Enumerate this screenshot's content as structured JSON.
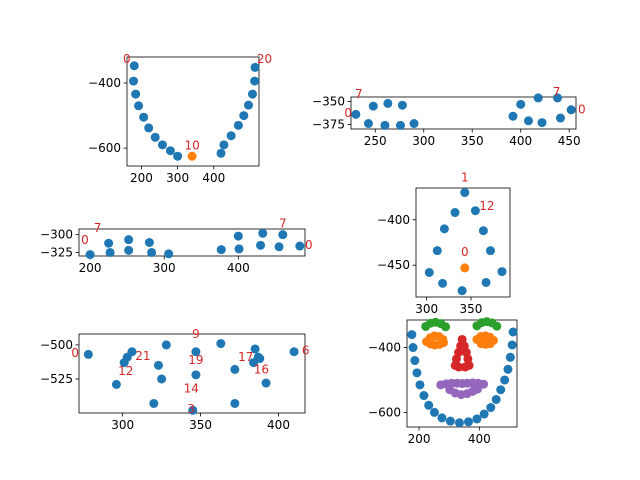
{
  "chart_data": [
    {
      "type": "scatter",
      "title": "",
      "xlabel": "",
      "ylabel": "",
      "xlim": [
        160,
        525
      ],
      "ylim": [
        -655,
        -320
      ],
      "xticks": [
        200,
        300,
        400
      ],
      "yticks": [
        -400,
        -600
      ],
      "grid": false,
      "series": [
        {
          "color": "#1f77b4",
          "points": [
            [
              180,
              -347
            ],
            [
              178,
              -394
            ],
            [
              184,
              -434
            ],
            [
              192,
              -470
            ],
            [
              206,
              -505
            ],
            [
              220,
              -538
            ],
            [
              238,
              -567
            ],
            [
              258,
              -590
            ],
            [
              280,
              -608
            ],
            [
              300,
              -625
            ],
            [
              420,
              -616
            ],
            [
              428,
              -590
            ],
            [
              448,
              -562
            ],
            [
              468,
              -530
            ],
            [
              483,
              -500
            ],
            [
              496,
              -468
            ],
            [
              507,
              -434
            ],
            [
              513,
              -394
            ],
            [
              514,
              -352
            ]
          ]
        },
        {
          "color": "#ff7f0e",
          "points": [
            [
              340,
              -625
            ]
          ]
        }
      ],
      "annotations": [
        {
          "text": "0",
          "x": 170,
          "y": -338,
          "color": "#d62728",
          "align": "end"
        },
        {
          "text": "20",
          "x": 519,
          "y": -338,
          "color": "#d62728",
          "align": "start"
        },
        {
          "text": "10",
          "x": 340,
          "y": -605,
          "color": "#d62728",
          "align": "middle"
        }
      ]
    },
    {
      "type": "scatter",
      "title": "",
      "xlabel": "",
      "ylabel": "",
      "xlim": [
        225,
        457
      ],
      "ylim": [
        -380,
        -345
      ],
      "xticks": [
        250,
        300,
        350,
        400,
        450
      ],
      "yticks": [
        -350,
        -375
      ],
      "grid": false,
      "series": [
        {
          "color": "#1f77b4",
          "points": [
            [
              230,
              -364
            ],
            [
              243,
              -374
            ],
            [
              248,
              -355
            ],
            [
              260,
              -376
            ],
            [
              263,
              -352
            ],
            [
              276,
              -376
            ],
            [
              278,
              -354
            ],
            [
              290,
              -374
            ],
            [
              392,
              -366
            ],
            [
              400,
              -353
            ],
            [
              408,
              -371
            ],
            [
              418,
              -346
            ],
            [
              422,
              -373
            ],
            [
              438,
              -346
            ],
            [
              441,
              -368
            ],
            [
              452,
              -359
            ]
          ]
        }
      ],
      "annotations": [
        {
          "text": "7",
          "x": 237,
          "y": -346,
          "color": "#d62728",
          "align": "end"
        },
        {
          "text": "7",
          "x": 437,
          "y": -344,
          "color": "#d62728",
          "align": "middle"
        },
        {
          "text": "0",
          "x": 226,
          "y": -367,
          "color": "#d62728",
          "align": "end",
          "big": true
        },
        {
          "text": "0",
          "x": 459,
          "y": -363,
          "color": "#d62728",
          "align": "start"
        }
      ]
    },
    {
      "type": "scatter",
      "title": "",
      "xlabel": "",
      "ylabel": "",
      "xlim": [
        185,
        490
      ],
      "ylim": [
        -330,
        -292
      ],
      "xticks": [
        200,
        300,
        400
      ],
      "yticks": [
        -300,
        -325
      ],
      "grid": false,
      "series": [
        {
          "color": "#1f77b4",
          "points": [
            [
              200,
              -328
            ],
            [
              225,
              -312
            ],
            [
              227,
              -325
            ],
            [
              252,
              -322
            ],
            [
              252,
              -307
            ],
            [
              280,
              -311
            ],
            [
              283,
              -325
            ],
            [
              306,
              -327
            ],
            [
              377,
              -321
            ],
            [
              400,
              -302
            ],
            [
              401,
              -320
            ],
            [
              430,
              -315
            ],
            [
              433,
              -298
            ],
            [
              455,
              -317
            ],
            [
              460,
              -300
            ],
            [
              483,
              -316
            ]
          ]
        }
      ],
      "annotations": [
        {
          "text": "7",
          "x": 210,
          "y": -296,
          "color": "#d62728",
          "align": "middle"
        },
        {
          "text": "7",
          "x": 460,
          "y": -290,
          "color": "#d62728",
          "align": "middle"
        },
        {
          "text": "0",
          "x": 193,
          "y": -313,
          "color": "#d62728",
          "align": "middle"
        },
        {
          "text": "0",
          "x": 490,
          "y": -320,
          "color": "#d62728",
          "align": "start"
        }
      ]
    },
    {
      "type": "scatter",
      "title": "",
      "xlabel": "",
      "ylabel": "",
      "xlim": [
        288,
        394
      ],
      "ylim": [
        -485,
        -365
      ],
      "xticks": [
        300,
        350
      ],
      "yticks": [
        -400,
        -450
      ],
      "grid": false,
      "series": [
        {
          "color": "#1f77b4",
          "points": [
            [
              343,
              -370
            ],
            [
              332,
              -392
            ],
            [
              355,
              -390
            ],
            [
              320,
              -410
            ],
            [
              364,
              -412
            ],
            [
              312,
              -434
            ],
            [
              372,
              -434
            ],
            [
              303,
              -458
            ],
            [
              385,
              -457
            ],
            [
              318,
              -470
            ],
            [
              340,
              -478
            ],
            [
              367,
              -469
            ]
          ]
        },
        {
          "color": "#ff7f0e",
          "points": [
            [
              343,
              -453
            ]
          ]
        }
      ],
      "annotations": [
        {
          "text": "1",
          "x": 343,
          "y": -358,
          "color": "#d62728",
          "align": "middle"
        },
        {
          "text": "12",
          "x": 368,
          "y": -389,
          "color": "#d62728",
          "align": "middle"
        },
        {
          "text": "0",
          "x": 343,
          "y": -440,
          "color": "#d62728",
          "align": "middle"
        }
      ]
    },
    {
      "type": "scatter",
      "title": "",
      "xlabel": "",
      "ylabel": "",
      "xlim": [
        272,
        417
      ],
      "ylim": [
        -550,
        -492
      ],
      "xticks": [
        300,
        350,
        400
      ],
      "yticks": [
        -500,
        -525
      ],
      "grid": false,
      "series": [
        {
          "color": "#1f77b4",
          "points": [
            [
              278,
              -507
            ],
            [
              296,
              -529
            ],
            [
              301,
              -513
            ],
            [
              303,
              -509
            ],
            [
              306,
              -505
            ],
            [
              320,
              -543
            ],
            [
              323,
              -515
            ],
            [
              325,
              -525
            ],
            [
              328,
              -500
            ],
            [
              345,
              -548
            ],
            [
              347,
              -522
            ],
            [
              347,
              -505
            ],
            [
              363,
              -499
            ],
            [
              372,
              -543
            ],
            [
              372,
              -518
            ],
            [
              384,
              -513
            ],
            [
              385,
              -503
            ],
            [
              387,
              -509
            ],
            [
              388,
              -510
            ],
            [
              392,
              -528
            ],
            [
              410,
              -505
            ]
          ]
        }
      ],
      "annotations": [
        {
          "text": "0",
          "x": 272,
          "y": -509,
          "color": "#d62728",
          "align": "end"
        },
        {
          "text": "21",
          "x": 313,
          "y": -511,
          "color": "#d62728",
          "align": "middle"
        },
        {
          "text": "12",
          "x": 302,
          "y": -522,
          "color": "#d62728",
          "align": "middle"
        },
        {
          "text": "9",
          "x": 347,
          "y": -495,
          "color": "#d62728",
          "align": "middle"
        },
        {
          "text": "19",
          "x": 347,
          "y": -514,
          "color": "#d62728",
          "align": "middle"
        },
        {
          "text": "14",
          "x": 344,
          "y": -535,
          "color": "#d62728",
          "align": "middle"
        },
        {
          "text": "3",
          "x": 344,
          "y": -550,
          "color": "#d62728",
          "align": "middle"
        },
        {
          "text": "17",
          "x": 379,
          "y": -512,
          "color": "#d62728",
          "align": "middle"
        },
        {
          "text": "16",
          "x": 389,
          "y": -521,
          "color": "#d62728",
          "align": "middle"
        },
        {
          "text": "6",
          "x": 415,
          "y": -507,
          "color": "#d62728",
          "align": "start"
        }
      ]
    },
    {
      "type": "scatter",
      "title": "",
      "xlabel": "",
      "ylabel": "",
      "xlim": [
        160,
        525
      ],
      "ylim": [
        -645,
        -315
      ],
      "xticks": [
        200,
        400
      ],
      "yticks": [
        -400,
        -600
      ],
      "grid": false,
      "series": [
        {
          "color": "#1f77b4",
          "points": [
            [
              176,
              -360
            ],
            [
              180,
              -400
            ],
            [
              186,
              -440
            ],
            [
              193,
              -478
            ],
            [
              203,
              -515
            ],
            [
              216,
              -548
            ],
            [
              232,
              -578
            ],
            [
              251,
              -600
            ],
            [
              276,
              -617
            ],
            [
              304,
              -627
            ],
            [
              334,
              -632
            ],
            [
              364,
              -629
            ],
            [
              392,
              -620
            ],
            [
              416,
              -605
            ],
            [
              438,
              -585
            ],
            [
              456,
              -560
            ],
            [
              471,
              -530
            ],
            [
              484,
              -500
            ],
            [
              495,
              -467
            ],
            [
              503,
              -430
            ],
            [
              509,
              -392
            ],
            [
              512,
              -352
            ]
          ]
        },
        {
          "color": "#2ca02c",
          "points": [
            [
              222,
              -335
            ],
            [
              238,
              -325
            ],
            [
              255,
              -322
            ],
            [
              272,
              -326
            ],
            [
              288,
              -336
            ],
            [
              392,
              -333
            ],
            [
              408,
              -323
            ],
            [
              425,
              -320
            ],
            [
              442,
              -324
            ],
            [
              458,
              -334
            ]
          ]
        },
        {
          "color": "#ff7f0e",
          "points": [
            [
              225,
              -382
            ],
            [
              237,
              -370
            ],
            [
              251,
              -364
            ],
            [
              266,
              -366
            ],
            [
              279,
              -375
            ],
            [
              281,
              -385
            ],
            [
              268,
              -390
            ],
            [
              252,
              -392
            ],
            [
              238,
              -389
            ],
            [
              392,
              -375
            ],
            [
              405,
              -366
            ],
            [
              420,
              -364
            ],
            [
              435,
              -368
            ],
            [
              447,
              -378
            ],
            [
              436,
              -388
            ],
            [
              421,
              -390
            ],
            [
              406,
              -388
            ]
          ]
        },
        {
          "color": "#d62728",
          "points": [
            [
              343,
              -375
            ],
            [
              338,
              -395
            ],
            [
              350,
              -395
            ],
            [
              331,
              -415
            ],
            [
              357,
              -415
            ],
            [
              324,
              -435
            ],
            [
              362,
              -435
            ],
            [
              320,
              -455
            ],
            [
              366,
              -455
            ],
            [
              332,
              -460
            ],
            [
              353,
              -460
            ]
          ]
        },
        {
          "color": "#9467bd",
          "points": [
            [
              272,
              -515
            ],
            [
              290,
              -512
            ],
            [
              308,
              -510
            ],
            [
              326,
              -510
            ],
            [
              343,
              -511
            ],
            [
              360,
              -510
            ],
            [
              378,
              -509
            ],
            [
              396,
              -510
            ],
            [
              414,
              -513
            ],
            [
              302,
              -530
            ],
            [
              320,
              -540
            ],
            [
              340,
              -545
            ],
            [
              360,
              -542
            ],
            [
              378,
              -535
            ],
            [
              394,
              -528
            ]
          ]
        }
      ],
      "annotations": []
    }
  ]
}
